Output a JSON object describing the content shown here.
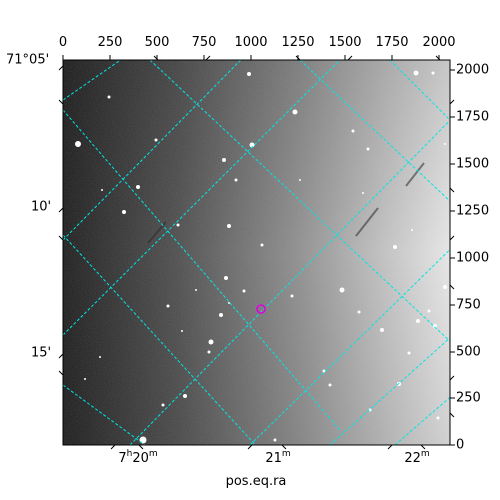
{
  "image_panel": {
    "xlabel": "pos.eq.ra",
    "top_pixel_ticks": [
      "0",
      "250",
      "500",
      "750",
      "1000",
      "1250",
      "1500",
      "1750",
      "2000"
    ],
    "right_pixel_ticks": [
      "2000",
      "1750",
      "1500",
      "1250",
      "1000",
      "750",
      "500",
      "250",
      "0"
    ],
    "dec_ticks": [
      "71°05'",
      "10'",
      "15'"
    ],
    "ra_ticks": [
      {
        "main": "7",
        "unit_h": "h",
        "min": "20",
        "unit_m": "m"
      },
      {
        "main": "21",
        "unit_m": "m"
      },
      {
        "main": "22",
        "unit_m": "m"
      }
    ],
    "colors": {
      "grid": "#00e5e5",
      "marker": "#e000e0",
      "background": "#ffffff"
    }
  }
}
